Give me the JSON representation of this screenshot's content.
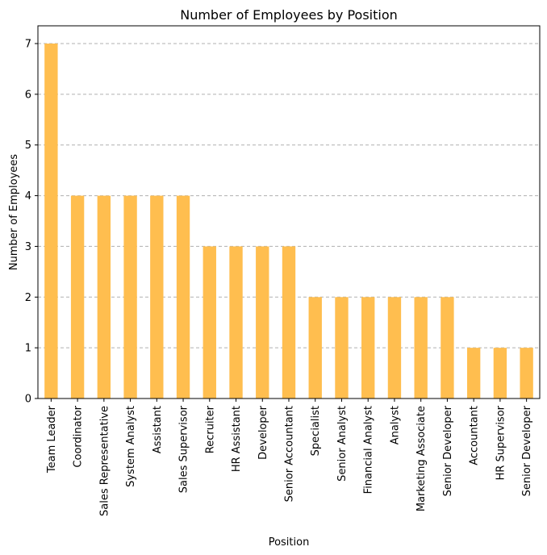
{
  "chart_data": {
    "type": "bar",
    "title": "Number of Employees by Position",
    "xlabel": "Position",
    "ylabel": "Number of Employees",
    "categories": [
      "Team Leader",
      "Coordinator",
      "Sales Representative",
      "System Analyst",
      "Assistant",
      "Sales Supervisor",
      "Recruiter",
      "HR Assistant",
      "Developer",
      "Senior Accountant",
      "Specialist",
      "Senior Analyst",
      "Financial Analyst",
      "Analyst",
      "Marketing Associate",
      "Senior Developer",
      "Accountant",
      "HR Supervisor",
      "Senior Developer"
    ],
    "values": [
      7,
      4,
      4,
      4,
      4,
      4,
      3,
      3,
      3,
      3,
      2,
      2,
      2,
      2,
      2,
      2,
      1,
      1,
      1
    ],
    "ylim": [
      0,
      7.35
    ],
    "yticks": [
      0,
      1,
      2,
      3,
      4,
      5,
      6,
      7
    ],
    "grid": "y-dashed",
    "legend": "none",
    "bar_color": "#ffbe4f"
  }
}
